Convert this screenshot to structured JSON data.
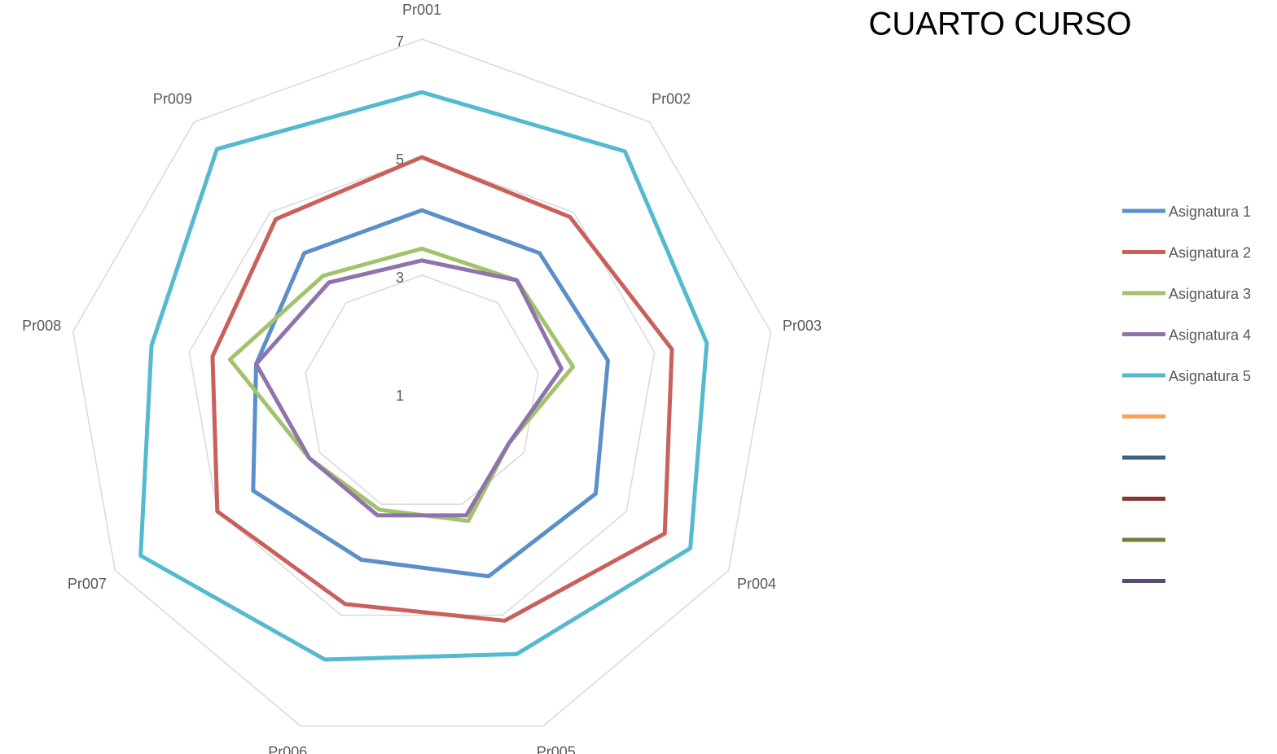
{
  "chart_data": {
    "type": "radar",
    "title": "CUARTO CURSO",
    "categories": [
      "Pr001",
      "Pr002",
      "Pr003",
      "Pr004",
      "Pr005",
      "Pr006",
      "Pr007",
      "Pr008",
      "Pr009"
    ],
    "rlim": [
      1,
      7
    ],
    "rticks": [
      1,
      3,
      5,
      7
    ],
    "grid": true,
    "legend": "right",
    "series": [
      {
        "name": "Asignatura 1",
        "color": "#5b8fc9",
        "values": [
          4.1,
          4.1,
          4.2,
          4.4,
          4.3,
          4.0,
          4.3,
          3.85,
          4.1
        ]
      },
      {
        "name": "Asignatura 2",
        "color": "#c9605b",
        "values": [
          5.0,
          4.9,
          5.3,
          5.75,
          5.1,
          4.8,
          5.0,
          4.6,
          4.85
        ]
      },
      {
        "name": "Asignatura 3",
        "color": "#a2c36c",
        "values": [
          3.45,
          3.5,
          3.6,
          2.7,
          3.3,
          3.1,
          3.2,
          4.3,
          3.6
        ]
      },
      {
        "name": "Asignatura 4",
        "color": "#8f73ad",
        "values": [
          3.25,
          3.5,
          3.4,
          2.7,
          3.2,
          3.2,
          3.2,
          3.85,
          3.45
        ]
      },
      {
        "name": "Asignatura 5",
        "color": "#55b9cf",
        "values": [
          6.1,
          6.35,
          5.9,
          6.25,
          5.7,
          5.8,
          6.5,
          5.65,
          6.4
        ]
      },
      {
        "color": "#f7a35c",
        "values": [
          null,
          null,
          null,
          null,
          null,
          null,
          null,
          null,
          null
        ]
      },
      {
        "color": "#3b6185",
        "values": [
          null,
          null,
          null,
          null,
          null,
          null,
          null,
          null,
          null
        ]
      },
      {
        "color": "#8a3633",
        "values": [
          null,
          null,
          null,
          null,
          null,
          null,
          null,
          null,
          null
        ]
      },
      {
        "color": "#6b8238",
        "values": [
          null,
          null,
          null,
          null,
          null,
          null,
          null,
          null,
          null
        ]
      },
      {
        "color": "#5d4a73",
        "values": [
          null,
          null,
          null,
          null,
          null,
          null,
          null,
          null,
          null
        ]
      }
    ]
  }
}
